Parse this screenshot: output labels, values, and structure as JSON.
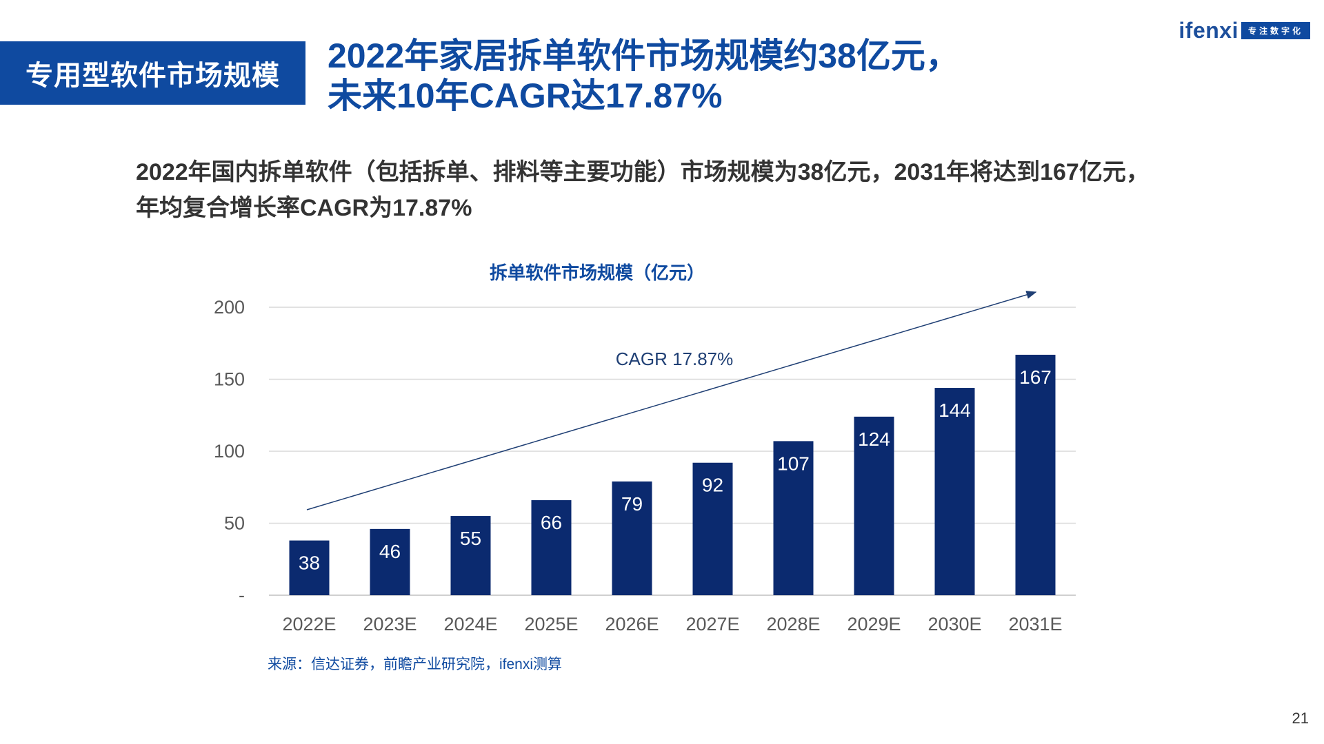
{
  "section_tag": "专用型软件市场规模",
  "headline": {
    "line1": "2022年家居拆单软件市场规模约38亿元，",
    "line2": "未来10年CAGR达17.87%"
  },
  "logo": {
    "word": "ifenxi",
    "tagline": "专注数字化"
  },
  "summary": {
    "line1": "2022年国内拆单软件（包括拆单、排料等主要功能）市场规模为38亿元，2031年将达到167亿元，",
    "line2": "年均复合增长率CAGR为17.87%"
  },
  "chart_data": {
    "type": "bar",
    "title": "拆单软件市场规模（亿元）",
    "categories": [
      "2022E",
      "2023E",
      "2024E",
      "2025E",
      "2026E",
      "2027E",
      "2028E",
      "2029E",
      "2030E",
      "2031E"
    ],
    "values": [
      38,
      46,
      55,
      66,
      79,
      92,
      107,
      124,
      144,
      167
    ],
    "ylim": [
      0,
      200
    ],
    "y_ticks": [
      {
        "value": 0,
        "label": "-"
      },
      {
        "value": 50,
        "label": "50"
      },
      {
        "value": 100,
        "label": "100"
      },
      {
        "value": 150,
        "label": "150"
      },
      {
        "value": 200,
        "label": "200"
      }
    ],
    "grid": true,
    "bar_color": "#0b2a6f",
    "annotation": "CAGR 17.87%",
    "annotation_color": "#1f3f74"
  },
  "source": "来源：信达证券，前瞻产业研究院，ifenxi测算",
  "page_number": "21",
  "colors": {
    "brand_blue": "#0f4aa0",
    "bar_navy": "#0b2a6f",
    "grid": "#d9d9d9"
  }
}
